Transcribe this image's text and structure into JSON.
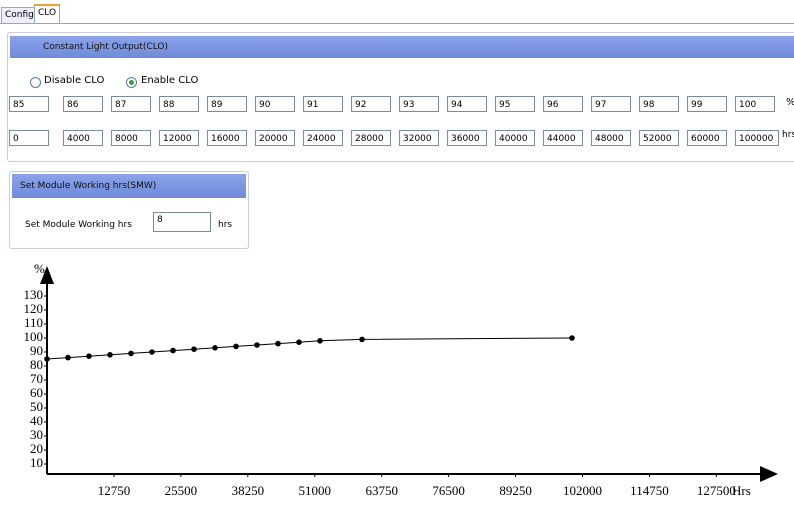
{
  "tabs": [
    "Config",
    "CLO"
  ],
  "clo": {
    "title": "Constant Light Output(CLO)",
    "options": [
      "Disable CLO",
      "Enable CLO"
    ],
    "percent": [
      85,
      86,
      87,
      88,
      89,
      90,
      91,
      92,
      93,
      94,
      95,
      96,
      97,
      98,
      99,
      100
    ],
    "percent_unit": "%",
    "hours": [
      0,
      4000,
      8000,
      12000,
      16000,
      20000,
      24000,
      28000,
      32000,
      36000,
      40000,
      44000,
      48000,
      52000,
      60000,
      100000
    ],
    "hours_unit": "hrs"
  },
  "smw": {
    "title": "Set Module Working hrs(SMW)",
    "label": "Set Module Working hrs",
    "value": 8,
    "unit": "hrs"
  },
  "chart_data": {
    "type": "line",
    "y_label": "%",
    "x_label": "Hrs",
    "color": "#000000",
    "x": [
      0,
      4000,
      8000,
      12000,
      16000,
      20000,
      24000,
      28000,
      32000,
      36000,
      40000,
      44000,
      48000,
      52000,
      60000,
      100000
    ],
    "values": [
      85,
      86,
      87,
      88,
      89,
      90,
      91,
      92,
      93,
      94,
      95,
      96,
      97,
      98,
      99,
      100
    ],
    "xlim": [
      0,
      140000
    ],
    "ylim": [
      0,
      150
    ],
    "xticks": [
      12750,
      25500,
      38250,
      51000,
      63750,
      76500,
      89250,
      102000,
      114750,
      127500
    ],
    "yticks": [
      10,
      20,
      30,
      40,
      50,
      60,
      70,
      80,
      90,
      100,
      110,
      120,
      130
    ]
  }
}
